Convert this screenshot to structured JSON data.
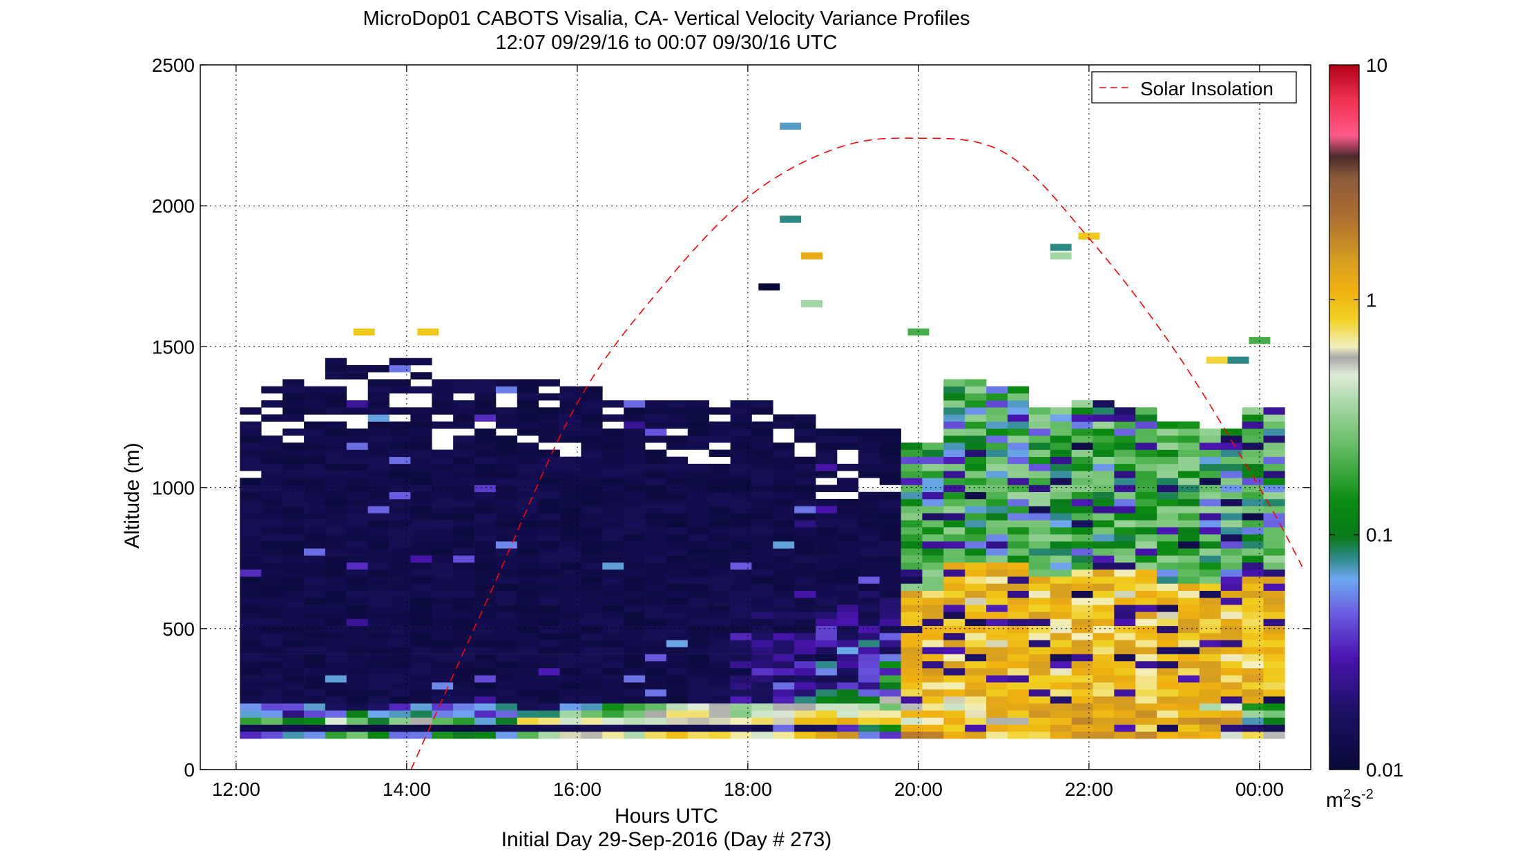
{
  "title_line1": "MicroDop01 CABOTS Visalia, CA- Vertical Velocity Variance Profiles",
  "title_line2": "12:07 09/29/16 to 00:07 09/30/16  UTC",
  "colorbar_unit_base": "m",
  "colorbar_unit_exp1": "2",
  "colorbar_unit_mid": "s",
  "colorbar_unit_exp2": "-2",
  "chart_data": {
    "type": "heatmap",
    "title": "MicroDop01 CABOTS Visalia, CA- Vertical Velocity Variance Profiles",
    "subtitle": "12:07 09/29/16 to 00:07 09/30/16  UTC",
    "xlabel": "Hours UTC",
    "xlabel2": "Initial Day 29-Sep-2016 (Day # 273)",
    "ylabel": "Altitude (m)",
    "xlim": [
      11.58,
      24.6
    ],
    "ylim": [
      0,
      2500
    ],
    "x_ticks": [
      12,
      14,
      16,
      18,
      20,
      22,
      24
    ],
    "x_tick_labels": [
      "12:00",
      "14:00",
      "16:00",
      "18:00",
      "20:00",
      "22:00",
      "00:00"
    ],
    "y_ticks": [
      0,
      500,
      1000,
      1500,
      2000,
      2500
    ],
    "y_tick_labels": [
      "0",
      "500",
      "1000",
      "1500",
      "2000",
      "2500"
    ],
    "grid": true,
    "legend": {
      "position": "top-right",
      "entries": [
        {
          "label": "Solar Insolation",
          "color": "#ff0000",
          "style": "dashed"
        }
      ]
    },
    "colorbar": {
      "scale": "log",
      "range": [
        0.01,
        10
      ],
      "tick_labels": [
        "0.01",
        "0.1",
        "1",
        "10"
      ],
      "unit": "m2s-2"
    },
    "time_step_hours": 0.25,
    "altitude_bin_m": 25,
    "solar_insolation": {
      "x": [
        14.05,
        15.0,
        16.0,
        17.0,
        18.0,
        19.0,
        19.9,
        21.0,
        22.0,
        23.0,
        24.0,
        24.5
      ],
      "y": [
        0,
        640,
        1300,
        1715,
        2030,
        2200,
        2240,
        2190,
        1885,
        1490,
        1000,
        720
      ]
    },
    "profiles": [
      {
        "t": 12.17,
        "low": [
          0.03,
          0.15,
          0.06,
          0.08
        ],
        "top": 1270,
        "background": "navy"
      },
      {
        "t": 12.42,
        "low": [
          0.05,
          0.3,
          0.07,
          0.06
        ],
        "top": 1340,
        "background": "navy"
      },
      {
        "t": 12.67,
        "low": [
          0.07,
          0.09,
          0.02,
          0.05
        ],
        "top": 1380,
        "background": "navy"
      },
      {
        "t": 13.0,
        "low": [
          0.06,
          0.1,
          0.03,
          0.07
        ],
        "top": 1350,
        "background": "navy"
      },
      {
        "t": 13.33,
        "low": [
          0.25,
          0.4,
          0.08,
          0.02
        ],
        "top": 1450,
        "background": "navy"
      },
      {
        "t": 13.67,
        "low": [
          0.15,
          0.12,
          0.05,
          0.03
        ],
        "top": 1420,
        "background": "navy"
      },
      {
        "t": 14.0,
        "low": [
          0.08,
          0.5,
          0.07,
          0.05
        ],
        "top": 1450,
        "background": "navy"
      },
      {
        "t": 14.5,
        "low": [
          0.12,
          0.2,
          0.06,
          0.04
        ],
        "top": 1370,
        "background": "navy"
      },
      {
        "t": 15.0,
        "low": [
          0.1,
          0.09,
          0.05,
          0.08
        ],
        "top": 1380,
        "background": "navy"
      },
      {
        "t": 15.5,
        "low": [
          0.3,
          0.6,
          0.07,
          0.02
        ],
        "top": 1380,
        "background": "navy"
      },
      {
        "t": 16.0,
        "low": [
          0.5,
          0.7,
          0.25,
          0.09
        ],
        "top": 1350,
        "background": "navy"
      },
      {
        "t": 16.5,
        "low": [
          0.6,
          0.55,
          0.2,
          0.15
        ],
        "top": 1300,
        "background": "navy"
      },
      {
        "t": 17.0,
        "low": [
          0.8,
          0.7,
          0.6,
          0.3
        ],
        "top": 1300,
        "background": "navy"
      },
      {
        "t": 17.5,
        "low": [
          0.9,
          0.8,
          0.7,
          0.45
        ],
        "top": 1300,
        "background": "navy"
      },
      {
        "t": 18.0,
        "low": [
          0.7,
          0.6,
          0.4,
          0.3
        ],
        "top": 1300,
        "background": "navy"
      },
      {
        "t": 18.5,
        "low": [
          1.0,
          0.8,
          0.75,
          0.6
        ],
        "top": 1250,
        "background": "navy"
      },
      {
        "t": 19.0,
        "low": [
          1.2,
          0.9,
          0.7,
          0.5
        ],
        "top": 1200,
        "background": "navy"
      },
      {
        "t": 19.5,
        "low": [
          0.06,
          0.7,
          0.8,
          0.3
        ],
        "top": 1190,
        "background": "navy"
      },
      {
        "t": 20.0,
        "low": [
          1.5,
          0.7,
          0.8,
          0.5
        ],
        "top": 1150,
        "background": "mixed"
      },
      {
        "t": 20.5,
        "low": [
          1.2,
          0.9,
          1.0,
          0.7
        ],
        "top": 1380,
        "background": "mixed"
      },
      {
        "t": 21.0,
        "low": [
          0.7,
          0.9,
          1.1,
          1.2
        ],
        "top": 1340,
        "background": "mixed"
      },
      {
        "t": 21.5,
        "low": [
          1.0,
          0.8,
          1.3,
          1.5
        ],
        "top": 1270,
        "background": "mixed"
      },
      {
        "t": 22.0,
        "low": [
          1.2,
          1.5,
          1.2,
          1.3
        ],
        "top": 1290,
        "background": "mixed"
      },
      {
        "t": 22.5,
        "low": [
          1.3,
          1.1,
          1.5,
          1.2
        ],
        "top": 1280,
        "background": "mixed"
      },
      {
        "t": 23.0,
        "low": [
          1.0,
          1.3,
          1.1,
          0.9
        ],
        "top": 1210,
        "background": "mixed"
      },
      {
        "t": 23.5,
        "low": [
          0.8,
          2.0,
          1.2,
          0.6
        ],
        "top": 1200,
        "background": "mixed"
      },
      {
        "t": 24.0,
        "low": [
          0.7,
          0.12,
          0.25,
          0.2
        ],
        "top": 1280,
        "background": "mixed"
      }
    ],
    "isolated_points": [
      {
        "t": 13.5,
        "alt": 1540,
        "value": 0.9
      },
      {
        "t": 14.25,
        "alt": 1540,
        "value": 0.9
      },
      {
        "t": 18.5,
        "alt": 2270,
        "value": 0.07
      },
      {
        "t": 18.5,
        "alt": 1940,
        "value": 0.08
      },
      {
        "t": 18.75,
        "alt": 1810,
        "value": 1.2
      },
      {
        "t": 18.25,
        "alt": 1700,
        "value": 0.01
      },
      {
        "t": 18.75,
        "alt": 1640,
        "value": 0.35
      },
      {
        "t": 21.67,
        "alt": 1840,
        "value": 0.08
      },
      {
        "t": 21.67,
        "alt": 1810,
        "value": 0.35
      },
      {
        "t": 22.0,
        "alt": 1880,
        "value": 0.9
      },
      {
        "t": 20.0,
        "alt": 1540,
        "value": 0.2
      },
      {
        "t": 23.5,
        "alt": 1440,
        "value": 0.8
      },
      {
        "t": 23.75,
        "alt": 1440,
        "value": 0.08
      },
      {
        "t": 24.0,
        "alt": 1510,
        "value": 0.2
      }
    ]
  }
}
